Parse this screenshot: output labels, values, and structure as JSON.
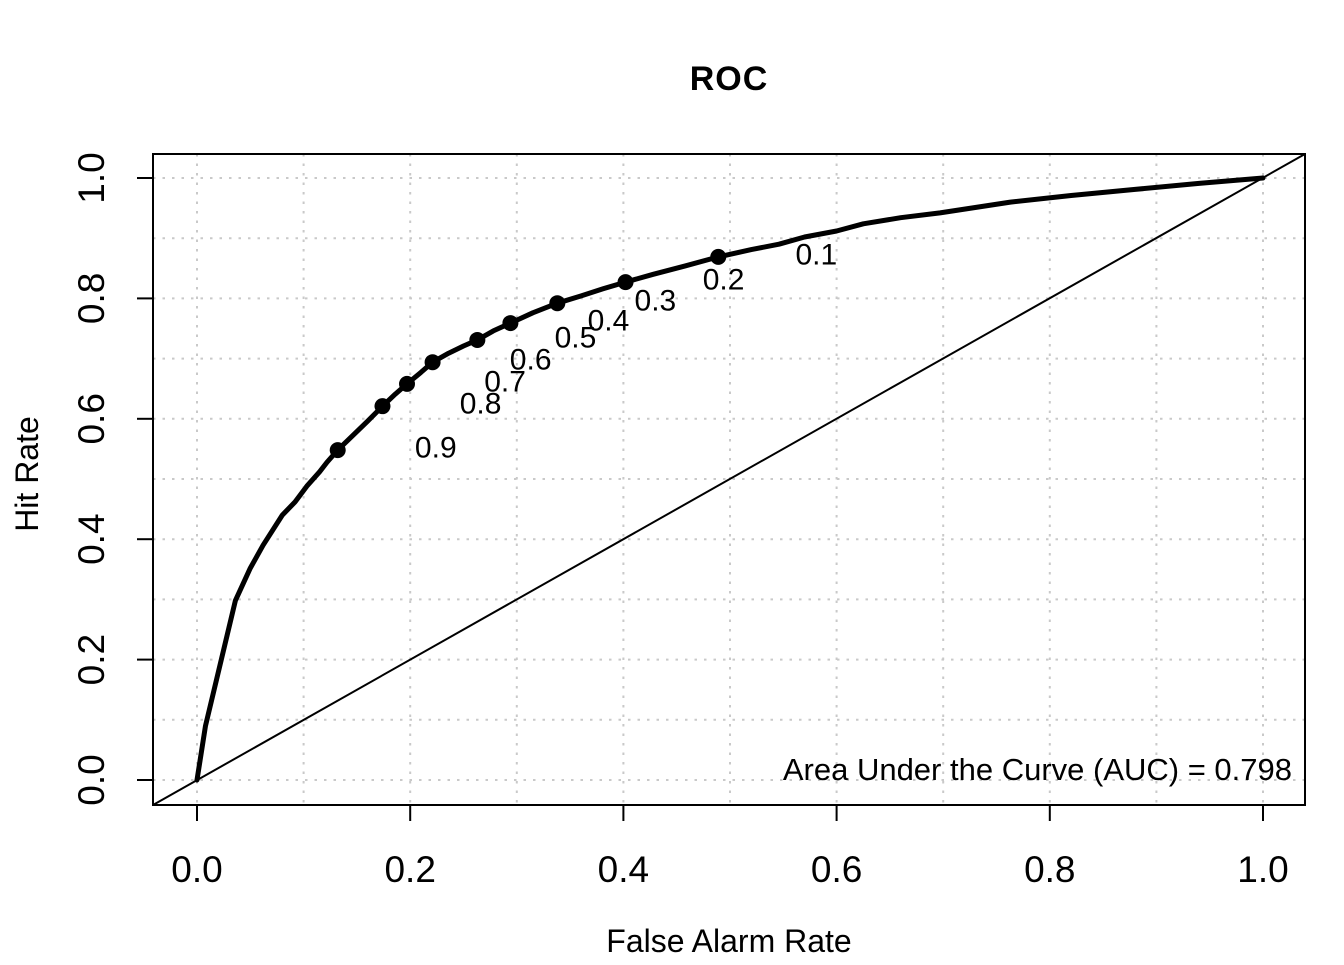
{
  "figure": {
    "background": "#ffffff",
    "foreground": "#000000"
  },
  "chart_data": {
    "type": "line",
    "title": "ROC",
    "xlabel": "False Alarm Rate",
    "ylabel": "Hit Rate",
    "xlim": [
      0.0,
      1.0
    ],
    "ylim": [
      0.0,
      1.0
    ],
    "x_ticks": {
      "values": [
        0.0,
        0.2,
        0.4,
        0.6,
        0.8,
        1.0
      ],
      "labels": [
        "0.0",
        "0.2",
        "0.4",
        "0.6",
        "0.8",
        "1.0"
      ]
    },
    "y_ticks": {
      "values": [
        0.0,
        0.2,
        0.4,
        0.6,
        0.8,
        1.0
      ],
      "labels": [
        "0.0",
        "0.2",
        "0.4",
        "0.6",
        "0.8",
        "1.0"
      ]
    },
    "grid": {
      "visible": true,
      "step": 0.1,
      "style": "dotted",
      "color": "#c9c9c9"
    },
    "legend_position": "none",
    "series": [
      {
        "name": "roc-curve",
        "color": "#000000",
        "stroke_width": 5,
        "points": [
          [
            0.0,
            0.0
          ],
          [
            0.008,
            0.09
          ],
          [
            0.036,
            0.298
          ],
          [
            0.05,
            0.352
          ],
          [
            0.062,
            0.39
          ],
          [
            0.08,
            0.44
          ],
          [
            0.092,
            0.462
          ],
          [
            0.103,
            0.488
          ],
          [
            0.115,
            0.512
          ],
          [
            0.122,
            0.528
          ],
          [
            0.132,
            0.548
          ],
          [
            0.146,
            0.572
          ],
          [
            0.16,
            0.596
          ],
          [
            0.174,
            0.621
          ],
          [
            0.186,
            0.641
          ],
          [
            0.197,
            0.658
          ],
          [
            0.21,
            0.677
          ],
          [
            0.221,
            0.694
          ],
          [
            0.236,
            0.709
          ],
          [
            0.25,
            0.721
          ],
          [
            0.263,
            0.731
          ],
          [
            0.278,
            0.746
          ],
          [
            0.294,
            0.759
          ],
          [
            0.315,
            0.776
          ],
          [
            0.338,
            0.792
          ],
          [
            0.36,
            0.804
          ],
          [
            0.381,
            0.816
          ],
          [
            0.402,
            0.827
          ],
          [
            0.428,
            0.84
          ],
          [
            0.458,
            0.854
          ],
          [
            0.489,
            0.869
          ],
          [
            0.52,
            0.881
          ],
          [
            0.546,
            0.89
          ],
          [
            0.57,
            0.902
          ],
          [
            0.6,
            0.912
          ],
          [
            0.625,
            0.924
          ],
          [
            0.66,
            0.934
          ],
          [
            0.697,
            0.942
          ],
          [
            0.73,
            0.951
          ],
          [
            0.763,
            0.96
          ],
          [
            0.82,
            0.971
          ],
          [
            0.88,
            0.981
          ],
          [
            0.94,
            0.991
          ],
          [
            1.0,
            1.0
          ]
        ]
      },
      {
        "name": "chance-diagonal",
        "color": "#000000",
        "stroke_width": 2,
        "points": [
          [
            0.0,
            0.0
          ],
          [
            1.0,
            1.0
          ]
        ],
        "extend_to_box": true
      }
    ],
    "criterion_points": {
      "marker": {
        "shape": "filled-circle",
        "color": "#000000",
        "radius": 8
      },
      "label_offset_x": 0.092,
      "points": [
        {
          "label": "0.1",
          "x": 0.489,
          "y": 0.869
        },
        {
          "label": "0.2",
          "x": 0.402,
          "y": 0.827
        },
        {
          "label": "0.3",
          "x": 0.338,
          "y": 0.792
        },
        {
          "label": "0.4",
          "x": 0.294,
          "y": 0.759
        },
        {
          "label": "0.5",
          "x": 0.263,
          "y": 0.731
        },
        {
          "label": "0.6",
          "x": 0.221,
          "y": 0.694
        },
        {
          "label": "0.7",
          "x": 0.197,
          "y": 0.658
        },
        {
          "label": "0.8",
          "x": 0.174,
          "y": 0.621
        },
        {
          "label": "0.9",
          "x": 0.132,
          "y": 0.548
        }
      ]
    },
    "annotation": {
      "text": "Area Under the Curve (AUC) = 0.798",
      "auc": 0.798,
      "position": "bottom-right"
    }
  }
}
